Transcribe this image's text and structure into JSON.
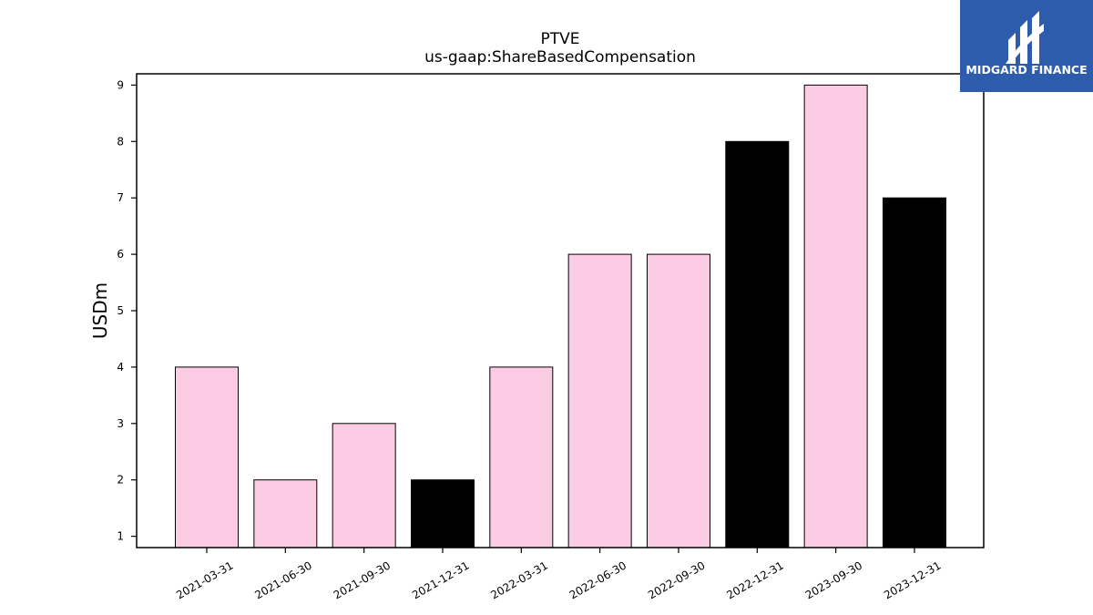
{
  "chart_data": {
    "type": "bar",
    "title": "PTVE",
    "subtitle": "us-gaap:ShareBasedCompensation",
    "xlabel": "",
    "ylabel": "USDm",
    "categories": [
      "2021-03-31",
      "2021-06-30",
      "2021-09-30",
      "2021-12-31",
      "2022-03-31",
      "2022-06-30",
      "2022-09-30",
      "2022-12-31",
      "2023-09-30",
      "2023-12-31"
    ],
    "values": [
      4,
      2,
      3,
      2,
      4,
      6,
      6,
      8,
      9,
      7
    ],
    "bar_colors": [
      "#fccbe4",
      "#fccbe4",
      "#fccbe4",
      "#000000",
      "#fccbe4",
      "#fccbe4",
      "#fccbe4",
      "#000000",
      "#fccbe4",
      "#000000"
    ],
    "ylim": [
      0.8,
      9.2
    ],
    "yticks": [
      1,
      2,
      3,
      4,
      5,
      6,
      7,
      8,
      9
    ],
    "grid": false,
    "legend": "none"
  },
  "branding": {
    "logo_text": "MIDGARD FINANCE",
    "logo_bg": "#2d5cad"
  }
}
